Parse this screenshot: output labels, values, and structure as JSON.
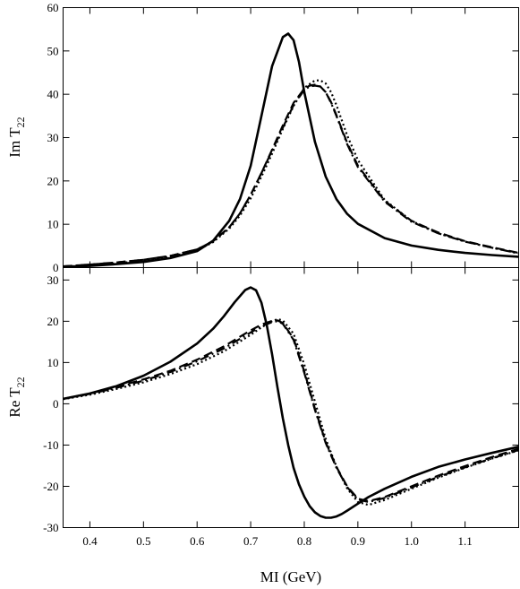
{
  "chart_data": [
    {
      "type": "line",
      "panel": "top",
      "xlim": [
        0.35,
        1.2
      ],
      "ylim": [
        0,
        60
      ],
      "ylabel_main": "Im T",
      "ylabel_sub": "22",
      "yticks": [
        0,
        10,
        20,
        30,
        40,
        50,
        60
      ],
      "grid": false,
      "series": [
        {
          "style": "solid",
          "x": [
            0.35,
            0.4,
            0.45,
            0.5,
            0.55,
            0.6,
            0.63,
            0.66,
            0.68,
            0.7,
            0.72,
            0.74,
            0.76,
            0.77,
            0.78,
            0.79,
            0.8,
            0.82,
            0.84,
            0.86,
            0.88,
            0.9,
            0.95,
            1.0,
            1.05,
            1.1,
            1.15,
            1.2
          ],
          "y": [
            0.2,
            0.4,
            0.8,
            1.3,
            2.2,
            3.8,
            6.2,
            10.8,
            15.8,
            23.5,
            35,
            46.5,
            53.2,
            54,
            52.5,
            47.5,
            40.5,
            29,
            21,
            15.8,
            12.4,
            10.1,
            6.8,
            5.1,
            4.1,
            3.4,
            2.9,
            2.5
          ]
        },
        {
          "style": "dash-dot",
          "x": [
            0.35,
            0.4,
            0.45,
            0.5,
            0.55,
            0.6,
            0.63,
            0.66,
            0.68,
            0.7,
            0.72,
            0.74,
            0.76,
            0.78,
            0.8,
            0.81,
            0.82,
            0.83,
            0.84,
            0.85,
            0.86,
            0.88,
            0.9,
            0.95,
            1.0,
            1.05,
            1.1,
            1.15,
            1.2
          ],
          "y": [
            0.3,
            0.7,
            1.2,
            1.8,
            2.7,
            4.2,
            6.1,
            9.3,
            12.5,
            16.8,
            21.8,
            27,
            32.3,
            37.5,
            41,
            41.8,
            42,
            41.8,
            40.5,
            38,
            35,
            28.5,
            23.2,
            15.2,
            10.6,
            7.9,
            6,
            4.6,
            3.3
          ]
        },
        {
          "style": "dashed",
          "x": [
            0.35,
            0.4,
            0.45,
            0.5,
            0.55,
            0.6,
            0.63,
            0.66,
            0.68,
            0.7,
            0.72,
            0.74,
            0.76,
            0.78,
            0.8,
            0.81,
            0.82,
            0.83,
            0.84,
            0.85,
            0.86,
            0.88,
            0.9,
            0.95,
            1.0,
            1.05,
            1.1,
            1.15,
            1.2
          ],
          "y": [
            0.3,
            0.7,
            1.2,
            1.8,
            2.7,
            4.2,
            6.1,
            9.3,
            12.5,
            16.8,
            21.8,
            27.2,
            32.8,
            38,
            41.3,
            42,
            42.2,
            41.8,
            40.5,
            38.2,
            35.2,
            28.8,
            23.5,
            15.4,
            10.8,
            8.1,
            6.1,
            4.7,
            3.4
          ]
        },
        {
          "style": "dotted",
          "x": [
            0.35,
            0.4,
            0.45,
            0.5,
            0.55,
            0.6,
            0.63,
            0.66,
            0.68,
            0.7,
            0.72,
            0.74,
            0.76,
            0.78,
            0.8,
            0.82,
            0.83,
            0.84,
            0.85,
            0.86,
            0.88,
            0.9,
            0.95,
            1.0,
            1.05,
            1.1,
            1.15,
            1.2
          ],
          "y": [
            0.2,
            0.5,
            1,
            1.6,
            2.5,
            4,
            5.9,
            9,
            12,
            16,
            21,
            26.3,
            32,
            37.3,
            41.5,
            43.2,
            43.2,
            42.5,
            40.5,
            37.5,
            30.5,
            24.8,
            15.6,
            10.8,
            7.9,
            6,
            4.6,
            3.3
          ]
        }
      ]
    },
    {
      "type": "line",
      "panel": "bottom",
      "xlim": [
        0.35,
        1.2
      ],
      "ylim": [
        -30,
        33
      ],
      "xlabel": "MI (GeV)",
      "ylabel_main": "Re T",
      "ylabel_sub": "22",
      "xticks": [
        0.4,
        0.5,
        0.6,
        0.7,
        0.8,
        0.9,
        1.0,
        1.1
      ],
      "xtick_labels": [
        "0.4",
        "0.5",
        "0.6",
        "0.7",
        "0.8",
        "0.9",
        "1.0",
        "1.1"
      ],
      "yticks": [
        -30,
        -20,
        -10,
        0,
        10,
        20,
        30
      ],
      "grid": false,
      "series": [
        {
          "style": "solid",
          "x": [
            0.35,
            0.4,
            0.45,
            0.5,
            0.55,
            0.6,
            0.63,
            0.65,
            0.67,
            0.69,
            0.7,
            0.71,
            0.72,
            0.73,
            0.74,
            0.75,
            0.76,
            0.77,
            0.78,
            0.79,
            0.8,
            0.81,
            0.82,
            0.83,
            0.84,
            0.85,
            0.86,
            0.87,
            0.88,
            0.9,
            0.92,
            0.95,
            1.0,
            1.05,
            1.1,
            1.15,
            1.2
          ],
          "y": [
            1.2,
            2.5,
            4.3,
            6.8,
            10.2,
            14.6,
            18.2,
            21.2,
            24.6,
            27.6,
            28.2,
            27.5,
            24.5,
            19,
            12,
            4,
            -3.5,
            -10,
            -15.5,
            -19.5,
            -22.5,
            -24.8,
            -26.3,
            -27.2,
            -27.6,
            -27.6,
            -27.3,
            -26.7,
            -25.9,
            -24.2,
            -22.6,
            -20.6,
            -17.7,
            -15.3,
            -13.5,
            -11.9,
            -10.4
          ]
        },
        {
          "style": "dash-dot",
          "x": [
            0.35,
            0.4,
            0.45,
            0.5,
            0.55,
            0.6,
            0.65,
            0.7,
            0.72,
            0.74,
            0.75,
            0.76,
            0.78,
            0.8,
            0.82,
            0.84,
            0.86,
            0.88,
            0.9,
            0.92,
            0.95,
            1.0,
            1.05,
            1.1,
            1.15,
            1.2
          ],
          "y": [
            1.2,
            2.4,
            3.9,
            5.6,
            7.7,
            10.3,
            13.4,
            17.3,
            18.8,
            19.8,
            20,
            19.4,
            15.5,
            7.5,
            -1.5,
            -9.5,
            -15.5,
            -20.2,
            -23.2,
            -23.8,
            -22.8,
            -20.3,
            -17.7,
            -15.4,
            -13.2,
            -11.2
          ]
        },
        {
          "style": "dashed",
          "x": [
            0.35,
            0.4,
            0.45,
            0.5,
            0.55,
            0.6,
            0.65,
            0.7,
            0.72,
            0.74,
            0.75,
            0.76,
            0.78,
            0.8,
            0.82,
            0.84,
            0.86,
            0.88,
            0.9,
            0.92,
            0.95,
            1.0,
            1.05,
            1.1,
            1.15,
            1.2
          ],
          "y": [
            1.2,
            2.5,
            4.1,
            5.9,
            8,
            10.7,
            13.9,
            17.8,
            19.2,
            20.1,
            20.2,
            19.6,
            15.8,
            7.8,
            -1.2,
            -9.3,
            -15.3,
            -20,
            -23,
            -23.6,
            -22.6,
            -20,
            -17.4,
            -15.1,
            -12.9,
            -10.9
          ]
        },
        {
          "style": "dotted",
          "x": [
            0.35,
            0.4,
            0.45,
            0.5,
            0.55,
            0.6,
            0.65,
            0.7,
            0.72,
            0.74,
            0.75,
            0.76,
            0.78,
            0.8,
            0.82,
            0.84,
            0.86,
            0.88,
            0.9,
            0.92,
            0.95,
            1.0,
            1.05,
            1.1,
            1.15,
            1.2
          ],
          "y": [
            1.1,
            2.2,
            3.6,
            5.2,
            7.2,
            9.6,
            12.7,
            16.7,
            18.5,
            20,
            20.5,
            20.2,
            17,
            9.5,
            0.5,
            -8.5,
            -15.2,
            -20.5,
            -23.8,
            -24.5,
            -23.3,
            -20.6,
            -17.9,
            -15.5,
            -13.3,
            -11.3
          ]
        }
      ]
    }
  ]
}
